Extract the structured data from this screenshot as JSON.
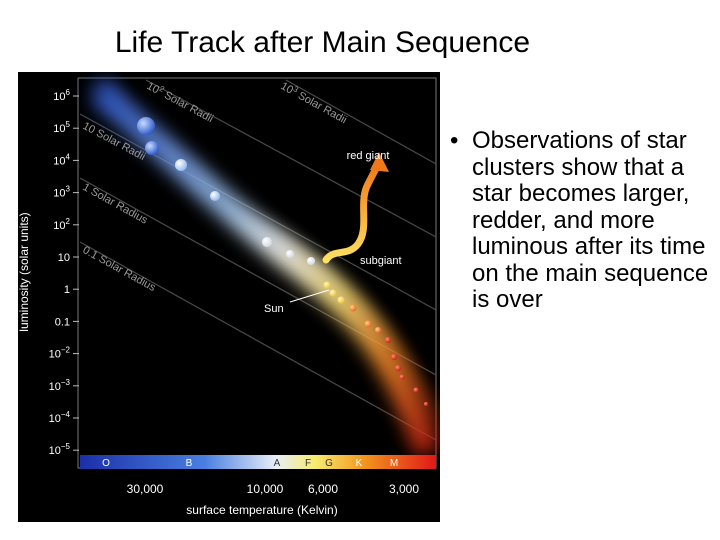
{
  "slide": {
    "title": "Life Track after Main Sequence",
    "bullet_marker": "•",
    "bullet_text": "Observations of star clusters show that a star becomes larger, redder, and more luminous after its time on the main sequence is over"
  },
  "diagram": {
    "y_axis_label": "luminosity (solar units)",
    "x_axis_label": "surface temperature (Kelvin)",
    "y_ticks": [
      {
        "base": "10",
        "exp": "6"
      },
      {
        "base": "10",
        "exp": "5"
      },
      {
        "base": "10",
        "exp": "4"
      },
      {
        "base": "10",
        "exp": "3"
      },
      {
        "base": "10",
        "exp": "2"
      },
      {
        "base": "10",
        "exp": ""
      },
      {
        "base": "1",
        "exp": ""
      },
      {
        "base": "0.1",
        "exp": ""
      },
      {
        "base": "10",
        "exp": "−2"
      },
      {
        "base": "10",
        "exp": "−3"
      },
      {
        "base": "10",
        "exp": "−4"
      },
      {
        "base": "10",
        "exp": "−5"
      }
    ],
    "x_ticks": [
      "30,000",
      "10,000",
      "6,000",
      "3,000"
    ],
    "spectral_classes": [
      "O",
      "B",
      "A",
      "F",
      "G",
      "K",
      "M"
    ],
    "radius_lines": [
      {
        "prefix": "10",
        "exp": "3",
        "suffix": " Solar Radii"
      },
      {
        "prefix": "10",
        "exp": "2",
        "suffix": " Solar Radii"
      },
      {
        "prefix": "10",
        "exp": "",
        "suffix": " Solar Radii"
      },
      {
        "prefix": "1",
        "exp": "",
        "suffix": " Solar Radius"
      },
      {
        "prefix": "0.1",
        "exp": "",
        "suffix": " Solar Radius"
      }
    ],
    "annotations": {
      "red_giant": "red giant",
      "subgiant": "subgiant",
      "sun": "Sun"
    },
    "colors": {
      "background": "#000000",
      "track": "#f5b400",
      "hot_stars": "#3a6fd8",
      "cool_stars": "#e0301a"
    }
  }
}
